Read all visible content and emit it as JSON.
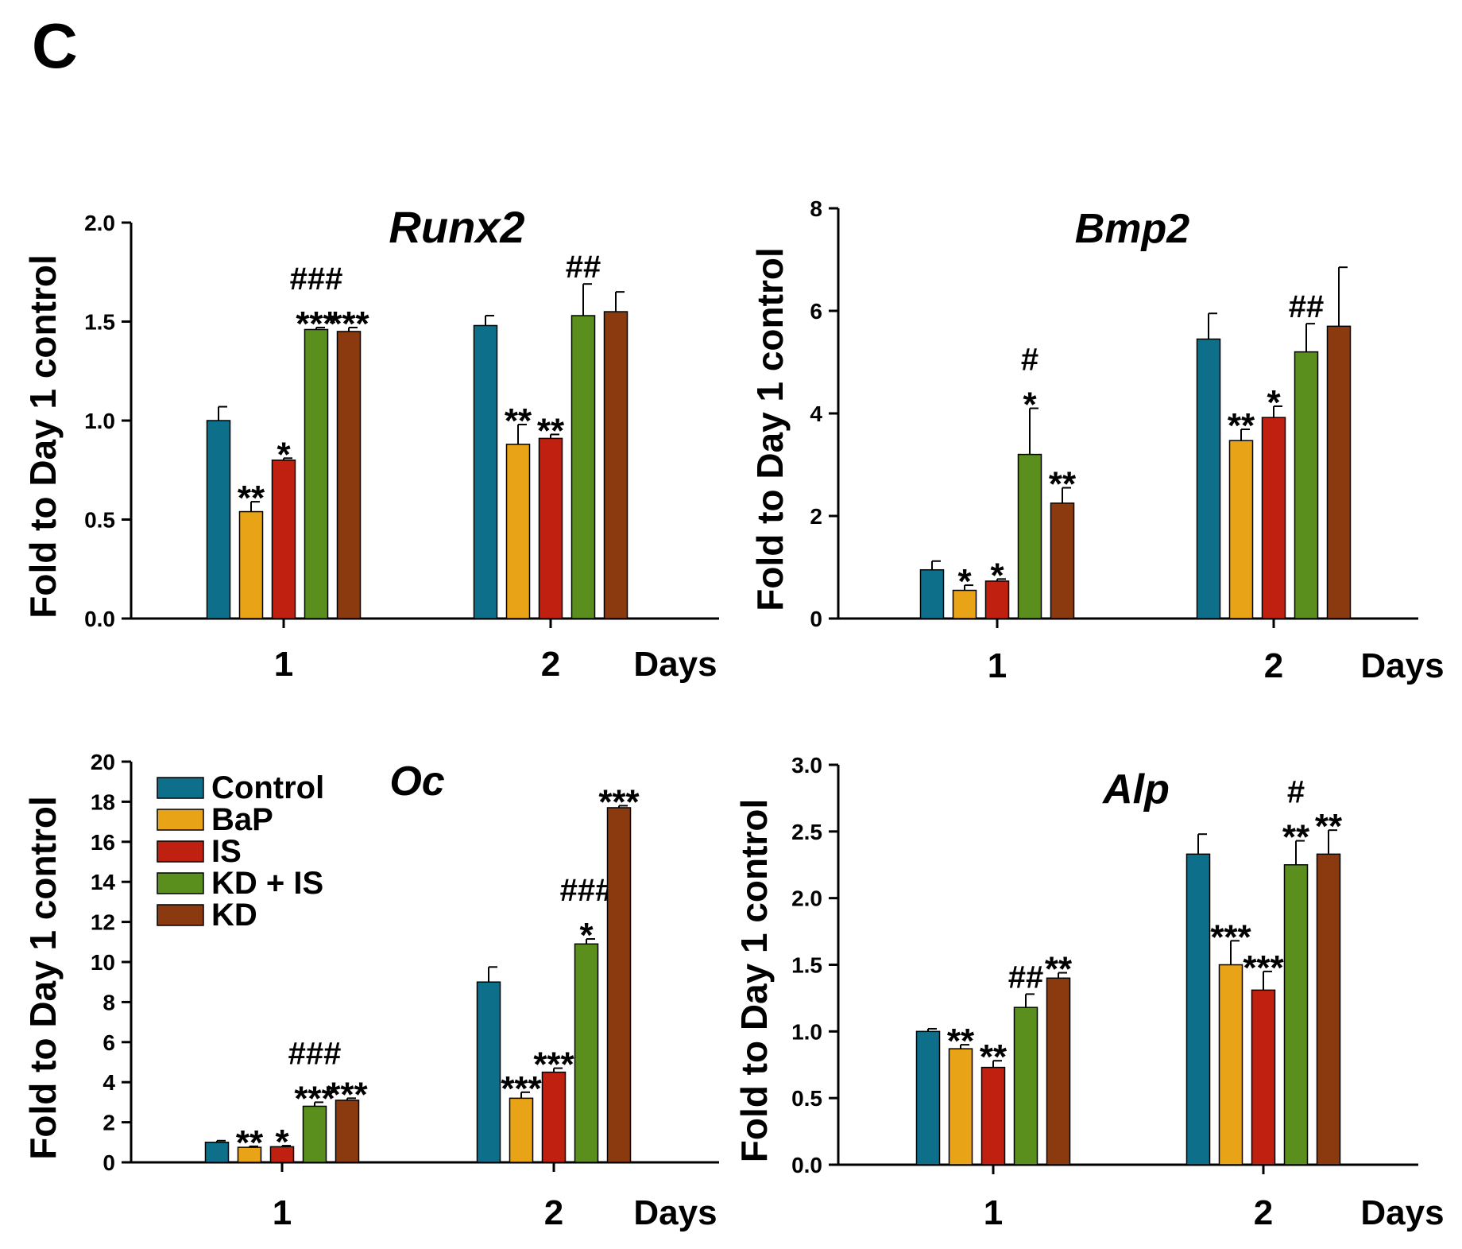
{
  "panel_label": "C",
  "chart_data": [
    {
      "type": "bar",
      "title": "Runx2",
      "ylabel": "Fold to Day 1 control",
      "xlabel": "Days",
      "categories": [
        "1",
        "2"
      ],
      "ylim": [
        0,
        2.0
      ],
      "yticks": [
        "0.0",
        "0.5",
        "1.0",
        "1.5",
        "2.0"
      ],
      "series": [
        {
          "name": "Control",
          "color": "#0e6f8a",
          "values": [
            1.0,
            1.48
          ],
          "errors": [
            0.07,
            0.05
          ],
          "annotations": [
            "",
            ""
          ]
        },
        {
          "name": "BaP",
          "color": "#e8a317",
          "values": [
            0.54,
            0.88
          ],
          "errors": [
            0.05,
            0.1
          ],
          "annotations": [
            "**",
            "**"
          ]
        },
        {
          "name": "IS",
          "color": "#c0200f",
          "values": [
            0.8,
            0.91
          ],
          "errors": [
            0.01,
            0.02
          ],
          "annotations": [
            "*",
            "**"
          ]
        },
        {
          "name": "KD + IS",
          "color": "#5a8f1e",
          "values": [
            1.46,
            1.53
          ],
          "errors": [
            0.01,
            0.16
          ],
          "annotations": [
            "***\n###",
            "##"
          ]
        },
        {
          "name": "KD",
          "color": "#8b3a0f",
          "values": [
            1.45,
            1.55
          ],
          "errors": [
            0.02,
            0.1
          ],
          "annotations": [
            "***",
            ""
          ]
        }
      ]
    },
    {
      "type": "bar",
      "title": "Bmp2",
      "ylabel": "Fold to Day 1 control",
      "xlabel": "Days",
      "categories": [
        "1",
        "2"
      ],
      "ylim": [
        0,
        8
      ],
      "yticks": [
        "0",
        "2",
        "4",
        "6",
        "8"
      ],
      "series": [
        {
          "name": "Control",
          "color": "#0e6f8a",
          "values": [
            0.95,
            5.45
          ],
          "errors": [
            0.17,
            0.5
          ],
          "annotations": [
            "",
            ""
          ]
        },
        {
          "name": "BaP",
          "color": "#e8a317",
          "values": [
            0.55,
            3.47
          ],
          "errors": [
            0.1,
            0.22
          ],
          "annotations": [
            "*",
            "**"
          ]
        },
        {
          "name": "IS",
          "color": "#c0200f",
          "values": [
            0.73,
            3.92
          ],
          "errors": [
            0.04,
            0.22
          ],
          "annotations": [
            "*",
            "*"
          ]
        },
        {
          "name": "KD + IS",
          "color": "#5a8f1e",
          "values": [
            3.2,
            5.2
          ],
          "errors": [
            0.9,
            0.55
          ],
          "annotations": [
            "*\n#",
            "##"
          ]
        },
        {
          "name": "KD",
          "color": "#8b3a0f",
          "values": [
            2.25,
            5.7
          ],
          "errors": [
            0.3,
            1.15
          ],
          "annotations": [
            "**",
            ""
          ]
        }
      ]
    },
    {
      "type": "bar",
      "title": "Oc",
      "ylabel": "Fold to Day 1 control",
      "xlabel": "Days",
      "categories": [
        "1",
        "2"
      ],
      "ylim": [
        0,
        20
      ],
      "yticks": [
        "0",
        "2",
        "4",
        "6",
        "8",
        "10",
        "12",
        "14",
        "16",
        "18",
        "20"
      ],
      "legend": "top-left",
      "series": [
        {
          "name": "Control",
          "color": "#0e6f8a",
          "values": [
            1.0,
            9.0
          ],
          "errors": [
            0.08,
            0.75
          ],
          "annotations": [
            "",
            ""
          ]
        },
        {
          "name": "BaP",
          "color": "#e8a317",
          "values": [
            0.75,
            3.2
          ],
          "errors": [
            0.05,
            0.3
          ],
          "annotations": [
            "**",
            "***"
          ]
        },
        {
          "name": "IS",
          "color": "#c0200f",
          "values": [
            0.78,
            4.5
          ],
          "errors": [
            0.05,
            0.2
          ],
          "annotations": [
            "*",
            "***"
          ]
        },
        {
          "name": "KD + IS",
          "color": "#5a8f1e",
          "values": [
            2.8,
            10.9
          ],
          "errors": [
            0.2,
            0.25
          ],
          "annotations": [
            "***\n###",
            "*\n###"
          ]
        },
        {
          "name": "KD",
          "color": "#8b3a0f",
          "values": [
            3.1,
            17.7
          ],
          "errors": [
            0.1,
            0.1
          ],
          "annotations": [
            "***",
            "***"
          ]
        }
      ]
    },
    {
      "type": "bar",
      "title": "Alp",
      "ylabel": "Fold to Day 1 control",
      "xlabel": "Days",
      "categories": [
        "1",
        "2"
      ],
      "ylim": [
        0,
        3.0
      ],
      "yticks": [
        "0.0",
        "0.5",
        "1.0",
        "1.5",
        "2.0",
        "2.5",
        "3.0"
      ],
      "series": [
        {
          "name": "Control",
          "color": "#0e6f8a",
          "values": [
            1.0,
            2.33
          ],
          "errors": [
            0.02,
            0.15
          ],
          "annotations": [
            "",
            ""
          ]
        },
        {
          "name": "BaP",
          "color": "#e8a317",
          "values": [
            0.87,
            1.5
          ],
          "errors": [
            0.03,
            0.18
          ],
          "annotations": [
            "**",
            "***"
          ]
        },
        {
          "name": "IS",
          "color": "#c0200f",
          "values": [
            0.73,
            1.31
          ],
          "errors": [
            0.05,
            0.14
          ],
          "annotations": [
            "**",
            "***"
          ]
        },
        {
          "name": "KD + IS",
          "color": "#5a8f1e",
          "values": [
            1.18,
            2.25
          ],
          "errors": [
            0.1,
            0.18
          ],
          "annotations": [
            "##",
            "**\n#"
          ]
        },
        {
          "name": "KD",
          "color": "#8b3a0f",
          "values": [
            1.4,
            2.33
          ],
          "errors": [
            0.04,
            0.18
          ],
          "annotations": [
            "**",
            "**"
          ]
        }
      ]
    }
  ]
}
